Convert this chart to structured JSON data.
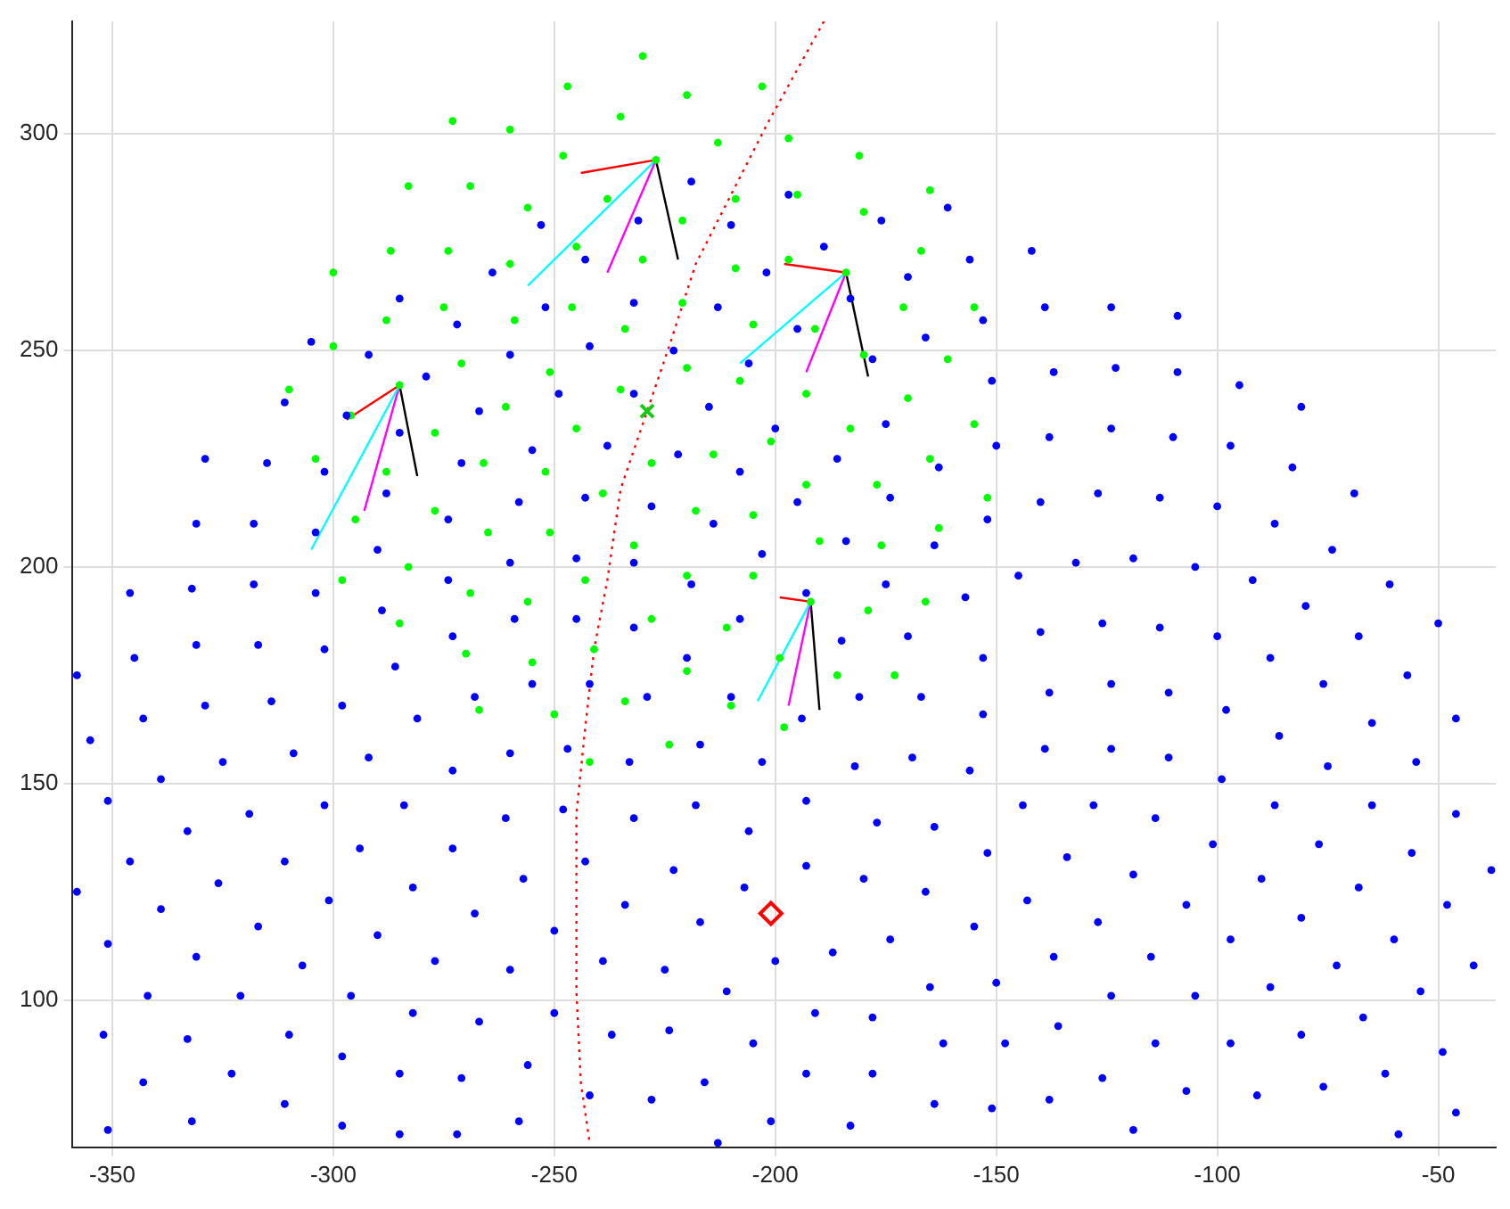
{
  "chart_data": {
    "type": "scatter",
    "xlim": [
      -359,
      -37
    ],
    "ylim": [
      66,
      326
    ],
    "xticks": [
      -350,
      -300,
      -250,
      -200,
      -150,
      -100,
      -50
    ],
    "yticks": [
      100,
      150,
      200,
      250,
      300
    ],
    "grid": true,
    "legend": false,
    "series": [
      {
        "color": "#0000ff",
        "marker": "circle",
        "x": [
          -346,
          -332,
          -318,
          -304,
          -289,
          -259,
          -345,
          -331,
          -317,
          -302,
          -286,
          -273,
          -255,
          -268,
          -358,
          -343,
          -329,
          -314,
          -298,
          -281,
          -355,
          -325,
          -309,
          -292,
          -273,
          -260,
          -339,
          -351,
          -333,
          -319,
          -302,
          -284,
          -261,
          -346,
          -311,
          -294,
          -273,
          -358,
          -326,
          -282,
          -257,
          -339,
          -301,
          -268,
          -351,
          -317,
          -290,
          -331,
          -307,
          -277,
          -260,
          -342,
          -321,
          -296,
          -352,
          -333,
          -310,
          -282,
          -267,
          -298,
          -343,
          -323,
          -285,
          -271,
          -256,
          -351,
          -332,
          -311,
          -298,
          -285,
          -272,
          -258,
          -219,
          -175,
          -157,
          -193,
          -245,
          -232,
          -208,
          -220,
          -185,
          -170,
          -153,
          -242,
          -229,
          -210,
          -181,
          -167,
          -153,
          -194,
          -247,
          -233,
          -217,
          -203,
          -182,
          -169,
          -156,
          -248,
          -232,
          -218,
          -206,
          -193,
          -177,
          -164,
          -152,
          -144,
          -243,
          -223,
          -207,
          -193,
          -180,
          -166,
          -143,
          -234,
          -217,
          -250,
          -239,
          -225,
          -200,
          -187,
          -174,
          -155,
          -211,
          -165,
          -150,
          -250,
          -237,
          -224,
          -205,
          -191,
          -178,
          -162,
          -148,
          -242,
          -228,
          -216,
          -193,
          -178,
          -164,
          -151,
          -201,
          -183,
          -213,
          -92,
          -61,
          -80,
          -140,
          -126,
          -113,
          -100,
          -68,
          -50,
          -88,
          -57,
          -138,
          -124,
          -111,
          -76,
          -98,
          -65,
          -46,
          -86,
          -139,
          -124,
          -111,
          -75,
          -55,
          -99,
          -128,
          -114,
          -87,
          -65,
          -46,
          -134,
          -101,
          -77,
          -56,
          -38,
          -119,
          -90,
          -68,
          -107,
          -48,
          -127,
          -81,
          -97,
          -60,
          -137,
          -115,
          -42,
          -73,
          -88,
          -124,
          -105,
          -54,
          -136,
          -114,
          -97,
          -81,
          -67,
          -49,
          -126,
          -107,
          -91,
          -76,
          -62,
          -138,
          -119,
          -59,
          -46,
          -142,
          -139,
          -124,
          -109,
          -137,
          -123,
          -109,
          -95,
          -81,
          -138,
          -124,
          -110,
          -97,
          -83,
          -69,
          -140,
          -127,
          -113,
          -100,
          -87,
          -74,
          -132,
          -119,
          -105,
          -219,
          -197,
          -231,
          -210,
          -176,
          -161,
          -243,
          -202,
          -189,
          -170,
          -156,
          -232,
          -213,
          -195,
          -183,
          -166,
          -153,
          -242,
          -223,
          -206,
          -178,
          -151,
          -249,
          -232,
          -215,
          -200,
          -175,
          -150,
          -238,
          -222,
          -208,
          -186,
          -163,
          -243,
          -228,
          -214,
          -195,
          -174,
          -152,
          -245,
          -232,
          -203,
          -184,
          -164,
          -145,
          -253,
          -264,
          -252,
          -285,
          -272,
          -305,
          -292,
          -260,
          -279,
          -311,
          -267,
          -297,
          -285,
          -255,
          -329,
          -315,
          -302,
          -271,
          -288,
          -258,
          -331,
          -318,
          -274,
          -304,
          -290,
          -260,
          -274
        ],
        "values": [
          194,
          195,
          196,
          194,
          190,
          188,
          179,
          182,
          182,
          181,
          177,
          184,
          173,
          170,
          175,
          165,
          168,
          169,
          168,
          165,
          160,
          155,
          157,
          156,
          153,
          157,
          151,
          146,
          139,
          143,
          145,
          145,
          142,
          132,
          132,
          135,
          135,
          125,
          127,
          126,
          128,
          121,
          123,
          120,
          113,
          117,
          115,
          110,
          108,
          109,
          107,
          101,
          101,
          101,
          92,
          91,
          92,
          97,
          95,
          87,
          81,
          83,
          83,
          82,
          85,
          70,
          72,
          76,
          71,
          69,
          69,
          72,
          196,
          196,
          193,
          194,
          188,
          186,
          188,
          179,
          183,
          184,
          179,
          173,
          170,
          170,
          170,
          170,
          166,
          165,
          158,
          155,
          159,
          155,
          154,
          156,
          153,
          144,
          142,
          145,
          139,
          146,
          141,
          140,
          134,
          145,
          132,
          130,
          126,
          131,
          128,
          125,
          123,
          122,
          118,
          116,
          109,
          107,
          109,
          111,
          114,
          117,
          102,
          103,
          104,
          97,
          92,
          93,
          90,
          97,
          96,
          90,
          90,
          78,
          77,
          81,
          83,
          83,
          76,
          75,
          72,
          71,
          67,
          197,
          196,
          191,
          185,
          187,
          186,
          184,
          184,
          187,
          179,
          175,
          171,
          173,
          171,
          173,
          167,
          164,
          165,
          161,
          158,
          158,
          156,
          154,
          155,
          151,
          145,
          142,
          145,
          145,
          143,
          133,
          136,
          136,
          134,
          130,
          129,
          128,
          126,
          122,
          122,
          118,
          119,
          114,
          114,
          110,
          110,
          108,
          108,
          103,
          101,
          101,
          102,
          94,
          90,
          90,
          92,
          96,
          88,
          82,
          79,
          78,
          80,
          83,
          77,
          70,
          69,
          74,
          273,
          260,
          260,
          258,
          245,
          246,
          245,
          242,
          237,
          230,
          232,
          230,
          228,
          223,
          217,
          215,
          217,
          216,
          214,
          210,
          204,
          201,
          202,
          200,
          289,
          286,
          280,
          279,
          280,
          283,
          271,
          268,
          274,
          267,
          271,
          261,
          260,
          255,
          262,
          253,
          257,
          251,
          250,
          247,
          248,
          243,
          240,
          240,
          237,
          232,
          233,
          228,
          228,
          226,
          222,
          225,
          223,
          216,
          214,
          210,
          215,
          216,
          211,
          202,
          201,
          203,
          206,
          205,
          198,
          279,
          268,
          260,
          262,
          256,
          252,
          249,
          249,
          244,
          238,
          236,
          235,
          231,
          227,
          225,
          224,
          222,
          224,
          217,
          215,
          210,
          210,
          211,
          208,
          204,
          201,
          197
        ]
      },
      {
        "color": "#00ff00",
        "marker": "circle",
        "x": [
          -230,
          -247,
          -220,
          -203,
          -235,
          -213,
          -197,
          -248,
          -181,
          -238,
          -209,
          -195,
          -165,
          -221,
          -180,
          -245,
          -230,
          -209,
          -197,
          -167,
          -246,
          -221,
          -205,
          -191,
          -171,
          -155,
          -234,
          -180,
          -161,
          -251,
          -220,
          -208,
          -235,
          -193,
          -170,
          -245,
          -201,
          -183,
          -155,
          -214,
          -165,
          -228,
          -239,
          -193,
          -177,
          -152,
          -218,
          -205,
          -232,
          -190,
          -176,
          -163,
          -220,
          -205,
          -243,
          -273,
          -260,
          -283,
          -269,
          -256,
          -287,
          -274,
          -260,
          -300,
          -275,
          -288,
          -259,
          -300,
          -271,
          -310,
          -261,
          -296,
          -277,
          -304,
          -288,
          -266,
          -252,
          -295,
          -277,
          -265,
          -251,
          -298,
          -283,
          -269,
          -256,
          -285,
          -270,
          -255,
          -267,
          -250,
          -166,
          -179,
          -228,
          -211,
          -241,
          -199,
          -220,
          -186,
          -173,
          -234,
          -210,
          -198,
          -224,
          -242,
          -227,
          -184,
          -285,
          -192
        ],
        "values": [
          318,
          311,
          309,
          311,
          304,
          298,
          299,
          295,
          295,
          285,
          285,
          286,
          287,
          280,
          282,
          274,
          271,
          269,
          271,
          273,
          260,
          261,
          256,
          255,
          260,
          260,
          255,
          249,
          248,
          245,
          246,
          243,
          241,
          240,
          239,
          232,
          229,
          232,
          233,
          226,
          225,
          224,
          217,
          219,
          219,
          216,
          213,
          212,
          205,
          206,
          205,
          209,
          198,
          198,
          197,
          303,
          301,
          288,
          288,
          283,
          273,
          273,
          270,
          268,
          260,
          257,
          257,
          251,
          247,
          241,
          237,
          235,
          231,
          225,
          222,
          224,
          222,
          211,
          213,
          208,
          208,
          197,
          200,
          194,
          192,
          187,
          180,
          178,
          167,
          166,
          192,
          190,
          188,
          186,
          181,
          179,
          176,
          175,
          175,
          169,
          168,
          163,
          159,
          155,
          294,
          268,
          242,
          192
        ]
      },
      {
        "color": "#11cc11",
        "marker": "cross",
        "x": [
          -229
        ],
        "values": [
          236
        ]
      },
      {
        "color": "#ff0000",
        "marker": "diamond",
        "x": [
          -201
        ],
        "values": [
          120
        ]
      },
      {
        "type": "line",
        "color": "#ff0000",
        "marker": "none",
        "line_style": "dotted",
        "x": [
          -189,
          -202,
          -210,
          -218,
          -224,
          -229,
          -235,
          -238,
          -241,
          -243,
          -245,
          -245,
          -245,
          -244,
          -242
        ],
        "values": [
          326,
          302,
          286,
          270,
          251,
          236,
          218,
          197,
          181,
          163,
          143,
          122,
          102,
          81,
          67
        ]
      },
      {
        "type": "line",
        "color": "#ff0000",
        "marker": "none",
        "line_style": "solid",
        "x": [
          -227,
          -244
        ],
        "values": [
          294,
          291
        ]
      },
      {
        "type": "line",
        "color": "#ff0000",
        "marker": "none",
        "line_style": "solid",
        "x": [
          -184,
          -198
        ],
        "values": [
          268,
          270
        ]
      },
      {
        "type": "line",
        "color": "#ff0000",
        "marker": "none",
        "line_style": "solid",
        "x": [
          -285,
          -297
        ],
        "values": [
          242,
          234
        ]
      },
      {
        "type": "line",
        "color": "#ff0000",
        "marker": "none",
        "line_style": "solid",
        "x": [
          -192,
          -199
        ],
        "values": [
          192,
          193
        ]
      },
      {
        "type": "line",
        "color": "#00ffff",
        "marker": "none",
        "line_style": "solid",
        "x": [
          -227,
          -256
        ],
        "values": [
          294,
          265
        ]
      },
      {
        "type": "line",
        "color": "#00ffff",
        "marker": "none",
        "line_style": "solid",
        "x": [
          -184,
          -208
        ],
        "values": [
          268,
          247
        ]
      },
      {
        "type": "line",
        "color": "#00ffff",
        "marker": "none",
        "line_style": "solid",
        "x": [
          -285,
          -305
        ],
        "values": [
          242,
          204
        ]
      },
      {
        "type": "line",
        "color": "#00ffff",
        "marker": "none",
        "line_style": "solid",
        "x": [
          -192,
          -204
        ],
        "values": [
          192,
          169
        ]
      },
      {
        "type": "line",
        "color": "#ff00ff",
        "marker": "none",
        "line_style": "solid",
        "x": [
          -227,
          -238
        ],
        "values": [
          294,
          268
        ]
      },
      {
        "type": "line",
        "color": "#ff00ff",
        "marker": "none",
        "line_style": "solid",
        "x": [
          -184,
          -193
        ],
        "values": [
          268,
          245
        ]
      },
      {
        "type": "line",
        "color": "#ff00ff",
        "marker": "none",
        "line_style": "solid",
        "x": [
          -285,
          -293
        ],
        "values": [
          242,
          213
        ]
      },
      {
        "type": "line",
        "color": "#ff00ff",
        "marker": "none",
        "line_style": "solid",
        "x": [
          -192,
          -197
        ],
        "values": [
          192,
          168
        ]
      },
      {
        "type": "line",
        "color": "#000000",
        "marker": "none",
        "line_style": "solid",
        "x": [
          -227,
          -222
        ],
        "values": [
          294,
          271
        ]
      },
      {
        "type": "line",
        "color": "#000000",
        "marker": "none",
        "line_style": "solid",
        "x": [
          -184,
          -179
        ],
        "values": [
          268,
          244
        ]
      },
      {
        "type": "line",
        "color": "#000000",
        "marker": "none",
        "line_style": "solid",
        "x": [
          -285,
          -281
        ],
        "values": [
          242,
          221
        ]
      },
      {
        "type": "line",
        "color": "#000000",
        "marker": "none",
        "line_style": "solid",
        "x": [
          -192,
          -190
        ],
        "values": [
          192,
          167
        ]
      }
    ]
  }
}
